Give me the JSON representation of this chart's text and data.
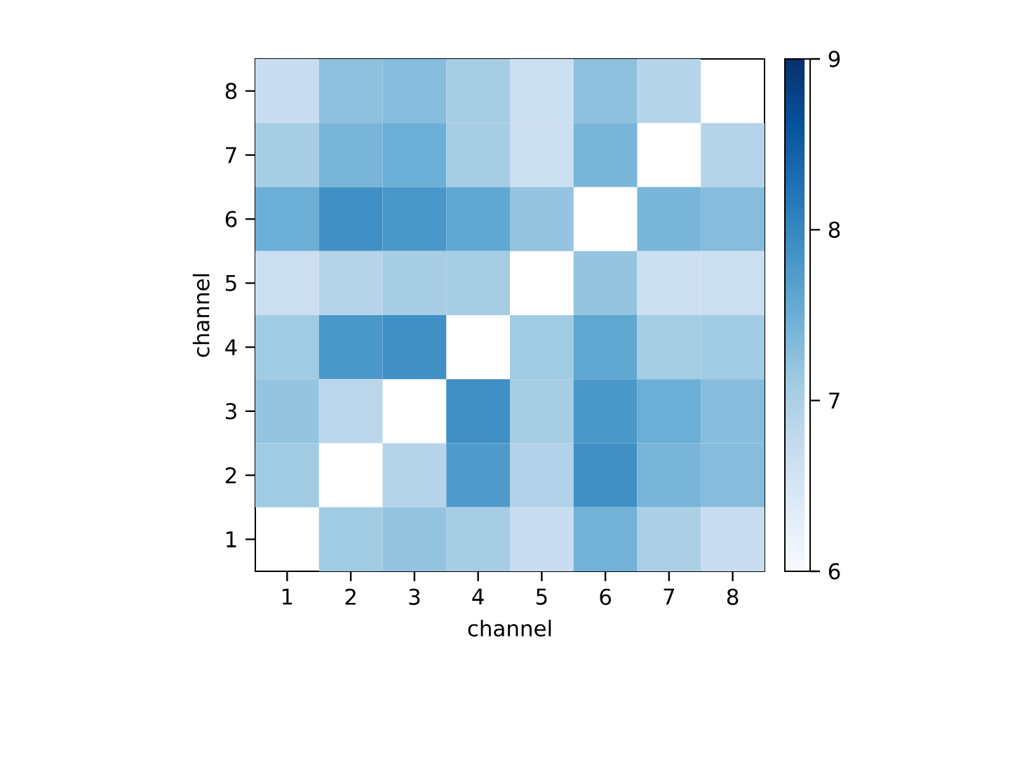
{
  "chart_data": {
    "type": "heatmap",
    "xlabel": "channel",
    "ylabel": "channel",
    "categories": [
      "1",
      "2",
      "3",
      "4",
      "5",
      "6",
      "7",
      "8"
    ],
    "y_categories": [
      "8",
      "7",
      "6",
      "5",
      "4",
      "3",
      "2",
      "1"
    ],
    "cells": [
      [
        6.7,
        7.25,
        7.3,
        7.05,
        6.65,
        7.25,
        6.9,
        null
      ],
      [
        7.05,
        7.4,
        7.5,
        7.05,
        6.65,
        7.4,
        null,
        6.9
      ],
      [
        7.5,
        7.9,
        7.8,
        7.6,
        7.2,
        null,
        7.4,
        7.3
      ],
      [
        6.65,
        6.9,
        7.05,
        7.05,
        null,
        7.2,
        6.65,
        6.65
      ],
      [
        7.1,
        7.8,
        7.9,
        null,
        7.1,
        7.6,
        7.05,
        7.1
      ],
      [
        7.2,
        6.85,
        null,
        7.9,
        7.05,
        7.8,
        7.5,
        7.3
      ],
      [
        7.1,
        null,
        6.9,
        7.75,
        6.95,
        7.9,
        7.4,
        7.3
      ],
      [
        null,
        7.1,
        7.2,
        7.05,
        6.7,
        7.45,
        7.0,
        6.7
      ]
    ],
    "clim": [
      6,
      9
    ],
    "cticks": [
      6,
      7,
      8,
      9
    ]
  }
}
